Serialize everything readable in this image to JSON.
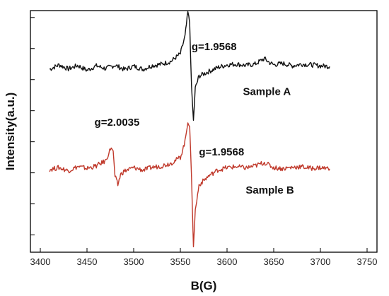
{
  "chart_data": {
    "type": "line",
    "title": "",
    "xlabel": "B(G)",
    "ylabel": "Intensity(a.u.)",
    "xlim": [
      3400,
      3750
    ],
    "x_ticks": [
      3400,
      3450,
      3500,
      3550,
      3600,
      3650,
      3700,
      3750
    ],
    "ylim": [
      -3.5,
      3.5
    ],
    "y_ticks_labeled": false,
    "grid": false,
    "legend": "none",
    "series": [
      {
        "name": "Sample A",
        "color": "#111111",
        "offset": 1.85,
        "points": [
          [
            3410,
            -0.05
          ],
          [
            3420,
            0.08
          ],
          [
            3430,
            -0.04
          ],
          [
            3440,
            0.06
          ],
          [
            3450,
            -0.08
          ],
          [
            3460,
            0.05
          ],
          [
            3470,
            -0.03
          ],
          [
            3480,
            0.07
          ],
          [
            3490,
            -0.06
          ],
          [
            3500,
            0.04
          ],
          [
            3510,
            -0.05
          ],
          [
            3520,
            0.06
          ],
          [
            3530,
            0.1
          ],
          [
            3540,
            0.18
          ],
          [
            3550,
            0.4
          ],
          [
            3555,
            0.9
          ],
          [
            3558,
            1.6
          ],
          [
            3560,
            1.3
          ],
          [
            3562,
            -0.6
          ],
          [
            3564,
            -1.55
          ],
          [
            3566,
            -0.6
          ],
          [
            3570,
            -0.25
          ],
          [
            3580,
            -0.12
          ],
          [
            3590,
            0.0
          ],
          [
            3600,
            0.08
          ],
          [
            3610,
            0.1
          ],
          [
            3620,
            0.06
          ],
          [
            3630,
            0.1
          ],
          [
            3640,
            0.26
          ],
          [
            3645,
            0.15
          ],
          [
            3650,
            0.08
          ],
          [
            3660,
            0.12
          ],
          [
            3670,
            0.05
          ],
          [
            3680,
            0.1
          ],
          [
            3690,
            0.08
          ],
          [
            3700,
            0.05
          ],
          [
            3710,
            0.03
          ]
        ]
      },
      {
        "name": "Sample B",
        "color": "#c0392b",
        "offset": -1.1,
        "points": [
          [
            3410,
            0.0
          ],
          [
            3420,
            0.05
          ],
          [
            3430,
            -0.04
          ],
          [
            3440,
            0.08
          ],
          [
            3450,
            0.03
          ],
          [
            3460,
            0.1
          ],
          [
            3470,
            0.25
          ],
          [
            3476,
            0.65
          ],
          [
            3478,
            0.5
          ],
          [
            3480,
            -0.2
          ],
          [
            3483,
            -0.45
          ],
          [
            3486,
            -0.15
          ],
          [
            3490,
            -0.05
          ],
          [
            3500,
            0.05
          ],
          [
            3510,
            -0.02
          ],
          [
            3520,
            0.06
          ],
          [
            3530,
            0.1
          ],
          [
            3540,
            0.18
          ],
          [
            3550,
            0.35
          ],
          [
            3555,
            0.8
          ],
          [
            3558,
            1.4
          ],
          [
            3560,
            1.25
          ],
          [
            3562,
            -0.3
          ],
          [
            3564,
            -2.2
          ],
          [
            3566,
            -1.2
          ],
          [
            3570,
            -0.45
          ],
          [
            3580,
            -0.2
          ],
          [
            3590,
            -0.02
          ],
          [
            3600,
            0.05
          ],
          [
            3610,
            0.08
          ],
          [
            3620,
            0.04
          ],
          [
            3630,
            0.1
          ],
          [
            3640,
            0.2
          ],
          [
            3650,
            0.05
          ],
          [
            3660,
            0.02
          ],
          [
            3670,
            0.06
          ],
          [
            3680,
            0.08
          ],
          [
            3690,
            0.03
          ],
          [
            3700,
            0.05
          ],
          [
            3710,
            0.02
          ]
        ]
      }
    ],
    "annotations": [
      {
        "text": "g=1.9568",
        "x": 3562,
        "y": 2.35
      },
      {
        "text": "Sample A",
        "x": 3617,
        "y": 1.05
      },
      {
        "text": "g=2.0035",
        "x": 3458,
        "y": 0.16
      },
      {
        "text": "g=1.9568",
        "x": 3570,
        "y": -0.7
      },
      {
        "text": "Sample B",
        "x": 3620,
        "y": -1.8
      }
    ]
  }
}
